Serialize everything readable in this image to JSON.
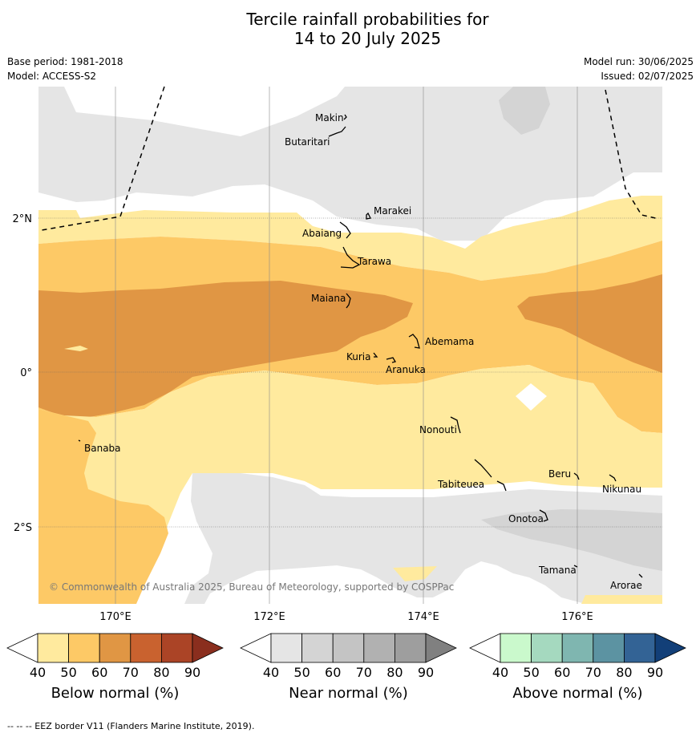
{
  "title_line1": "Tercile rainfall probabilities for",
  "title_line2": "14 to 20 July 2025",
  "base_period": "Base period: 1981-2018",
  "model": "Model: ACCESS-S2",
  "model_run": "Model run: 30/06/2025",
  "issued": "Issued: 02/07/2025",
  "copyright": "© Commonwealth of Australia 2025, Bureau of Meteorology, supported by COSPPac",
  "footer": "--  --  -- EEZ border V11 (Flanders Marine Institute, 2019).",
  "lat_labels": [
    "2°N",
    "0°",
    "2°S"
  ],
  "lon_labels": [
    "170°E",
    "172°E",
    "174°E",
    "176°E"
  ],
  "places": {
    "makin": "Makin",
    "butaritari": "Butaritari",
    "marakei": "Marakei",
    "abaiang": "Abaiang",
    "tarawa": "Tarawa",
    "maiana": "Maiana",
    "abemama": "Abemama",
    "kuria": "Kuria",
    "aranuka": "Aranuka",
    "nonouti": "Nonouti",
    "banaba": "Banaba",
    "tabiteuea": "Tabiteuea",
    "beru": "Beru",
    "nikunau": "Nikunau",
    "onotoa": "Onotoa",
    "tamana": "Tamana",
    "arorae": "Arorae"
  },
  "colorbars": [
    {
      "label": "Below normal (%)",
      "ticks": [
        "40",
        "50",
        "60",
        "70",
        "80",
        "90"
      ],
      "colors": [
        "#ffffff",
        "#ffea9e",
        "#fdc966",
        "#e09644",
        "#c9622f",
        "#ab4426",
        "#8a2e1e"
      ]
    },
    {
      "label": "Near normal (%)",
      "ticks": [
        "40",
        "50",
        "60",
        "70",
        "80",
        "90"
      ],
      "colors": [
        "#ffffff",
        "#e5e5e5",
        "#d4d4d4",
        "#c4c4c4",
        "#b1b1b1",
        "#9e9e9e",
        "#808080"
      ]
    },
    {
      "label": "Above normal (%)",
      "ticks": [
        "40",
        "50",
        "60",
        "70",
        "80",
        "90"
      ],
      "colors": [
        "#ffffff",
        "#caf9cc",
        "#a5d9bf",
        "#7fb6b0",
        "#5c93a2",
        "#336395",
        "#123f78"
      ]
    }
  ]
}
